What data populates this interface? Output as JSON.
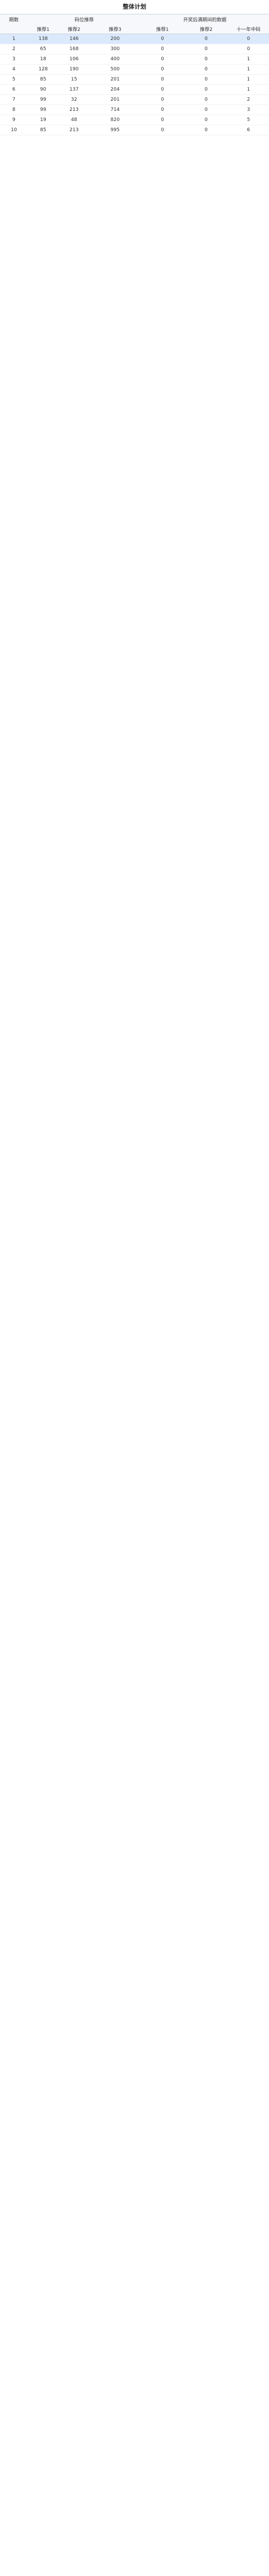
{
  "title": "整体计划",
  "header": {
    "col0": "期数",
    "group_left": "码位推荐",
    "group_right": "开奖后满期间的数据",
    "sub1": "推荐1",
    "sub2": "推荐2",
    "sub3": "推荐3",
    "sub4": "推荐1",
    "sub5": "推荐2",
    "sub6": "十一年中码"
  },
  "rows": [
    [
      "1",
      "138",
      "146",
      "200",
      "0",
      "0",
      "0"
    ],
    [
      "2",
      "65",
      "168",
      "300",
      "0",
      "0",
      "0"
    ],
    [
      "3",
      "18",
      "106",
      "400",
      "0",
      "0",
      "1"
    ],
    [
      "4",
      "128",
      "190",
      "500",
      "0",
      "0",
      "1"
    ],
    [
      "5",
      "85",
      "15",
      "201",
      "0",
      "0",
      "1"
    ],
    [
      "6",
      "90",
      "137",
      "204",
      "0",
      "0",
      "1"
    ],
    [
      "7",
      "99",
      "32",
      "201",
      "0",
      "0",
      "2"
    ],
    [
      "8",
      "99",
      "213",
      "714",
      "0",
      "0",
      "3"
    ],
    [
      "9",
      "19",
      "48",
      "820",
      "0",
      "0",
      "5"
    ],
    [
      "10",
      "85",
      "213",
      "995",
      "0",
      "0",
      "6"
    ]
  ]
}
